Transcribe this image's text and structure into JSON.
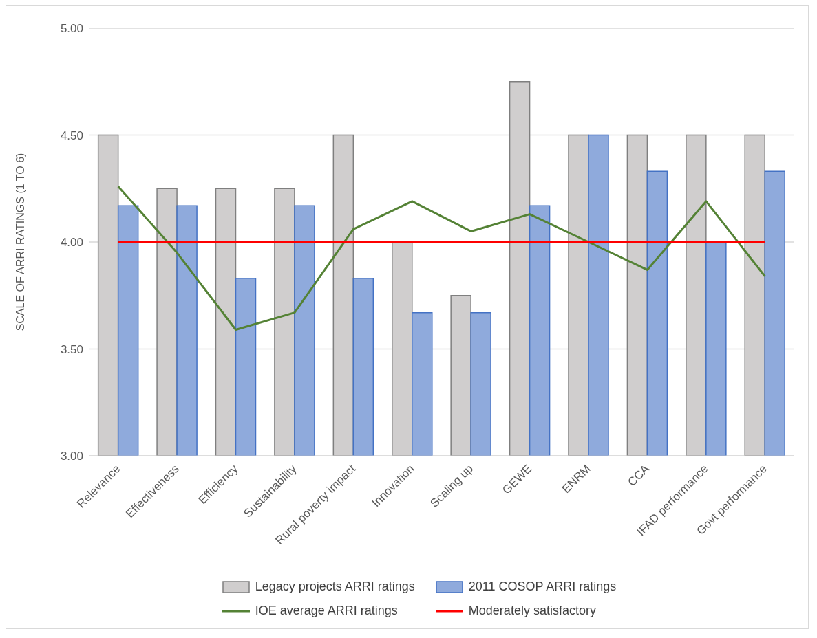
{
  "chart_data": {
    "type": "bar",
    "ylabel": "SCALE OF ARRI RATINGS (1 TO 6)",
    "categories": [
      "Relevance",
      "Effectiveness",
      "Efficiency",
      "Sustainability",
      "Rural poverty impact",
      "Innovation",
      "Scaling up",
      "GEWE",
      "ENRM",
      "CCA",
      "IFAD performance",
      "Govt performance"
    ],
    "series": [
      {
        "name": "Legacy projects ARRI ratings",
        "color": "#d0cece",
        "values": [
          4.5,
          4.25,
          4.25,
          4.25,
          4.5,
          4.0,
          3.75,
          4.75,
          4.5,
          4.5,
          4.5,
          4.5
        ]
      },
      {
        "name": "2011 COSOP ARRI ratings",
        "color": "#8faadc",
        "values": [
          4.17,
          4.17,
          3.83,
          4.17,
          3.83,
          3.67,
          3.67,
          4.17,
          4.5,
          4.33,
          4.0,
          4.33
        ]
      },
      {
        "name": "IOE average ARRI ratings",
        "type": "line",
        "color": "#548235",
        "values": [
          4.26,
          3.95,
          3.59,
          3.67,
          4.06,
          4.19,
          4.05,
          4.13,
          4.0,
          3.87,
          4.19,
          3.84
        ]
      },
      {
        "name": "Moderately satisfactory",
        "type": "line",
        "color": "#ff0000",
        "values": [
          4,
          4,
          4,
          4,
          4,
          4,
          4,
          4,
          4,
          4,
          4,
          4
        ]
      }
    ],
    "ylim": [
      3,
      5
    ],
    "yticks": [
      {
        "value": 3,
        "label": "3.00"
      },
      {
        "value": 3.5,
        "label": "3.50"
      },
      {
        "value": 4,
        "label": "4.00"
      },
      {
        "value": 4.5,
        "label": "4.50"
      },
      {
        "value": 5,
        "label": "5.00"
      }
    ],
    "grid": "y",
    "legend": "bottom"
  }
}
